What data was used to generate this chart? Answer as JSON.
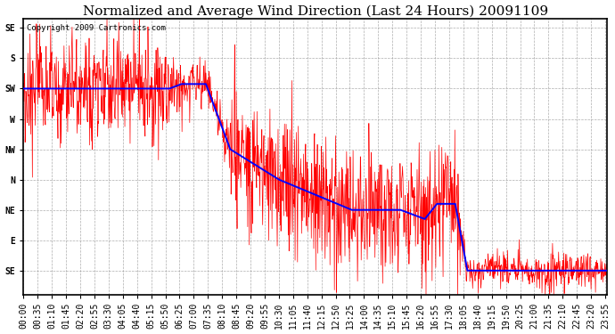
{
  "title": "Normalized and Average Wind Direction (Last 24 Hours) 20091109",
  "copyright": "Copyright 2009 Cartronics.com",
  "ytick_labels": [
    "SE",
    "E",
    "NE",
    "N",
    "NW",
    "W",
    "SW",
    "S",
    "SE"
  ],
  "ytick_values": [
    8,
    7,
    6,
    5,
    4,
    3,
    2,
    1,
    0
  ],
  "ylim": [
    -0.3,
    8.8
  ],
  "yinvert": true,
  "background_color": "#ffffff",
  "grid_color": "#999999",
  "red_color": "#ff0000",
  "blue_color": "#0000ff",
  "title_fontsize": 11,
  "copyright_fontsize": 6.5,
  "tick_fontsize": 7,
  "xtick_labels": [
    "00:00",
    "00:35",
    "01:10",
    "01:45",
    "02:20",
    "02:55",
    "03:30",
    "04:05",
    "04:40",
    "05:15",
    "05:50",
    "06:25",
    "07:00",
    "07:35",
    "08:10",
    "08:45",
    "09:20",
    "09:55",
    "10:30",
    "11:05",
    "11:40",
    "12:15",
    "12:50",
    "13:25",
    "14:00",
    "14:35",
    "15:10",
    "15:45",
    "16:20",
    "16:55",
    "17:30",
    "18:05",
    "18:40",
    "19:15",
    "19:50",
    "20:25",
    "21:00",
    "21:35",
    "22:10",
    "22:45",
    "23:20",
    "23:55"
  ]
}
